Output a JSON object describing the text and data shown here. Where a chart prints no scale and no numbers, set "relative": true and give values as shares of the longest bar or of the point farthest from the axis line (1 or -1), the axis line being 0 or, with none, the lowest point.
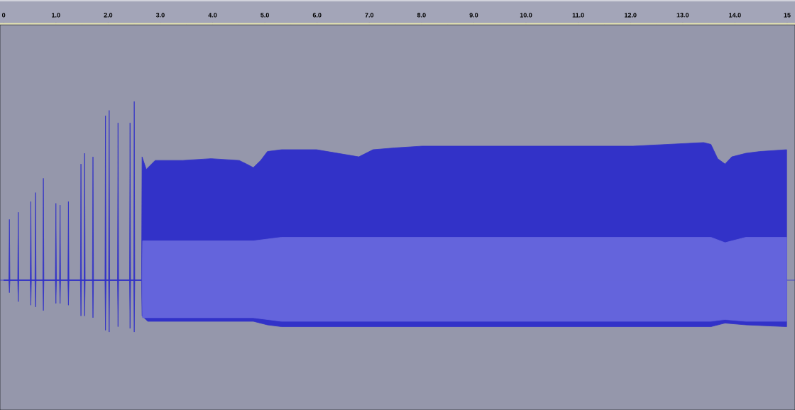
{
  "chart_data": {
    "type": "area",
    "relative": true,
    "xlim": [
      -0.07,
      15.15
    ],
    "ref_lines": [
      {
        "axis": "y",
        "value": 0,
        "color": "#3232c8"
      }
    ],
    "xticks": [
      0,
      {
        "value": 1,
        "label": "1.0"
      },
      {
        "value": 2,
        "label": "2.0"
      },
      {
        "value": 3,
        "label": "3.0"
      },
      {
        "value": 4,
        "label": "4.0"
      },
      {
        "value": 5,
        "label": "5.0"
      },
      {
        "value": 6,
        "label": "6.0"
      },
      {
        "value": 7,
        "label": "7.0"
      },
      {
        "value": 8,
        "label": "8.0"
      },
      {
        "value": 9,
        "label": "9.0"
      },
      {
        "value": 10,
        "label": "10.0"
      },
      {
        "value": 11,
        "label": "11.0"
      },
      {
        "value": 12,
        "label": "12.0"
      },
      {
        "value": 13,
        "label": "13.0"
      },
      {
        "value": 14,
        "label": "14.0"
      },
      15
    ],
    "series": [
      {
        "color": "#3232c8",
        "x": [
          0,
          0.1,
          0.11,
          0.12,
          0.27,
          0.28,
          0.29,
          0.51,
          0.52,
          0.53,
          0.6,
          0.61,
          0.62,
          0.75,
          0.76,
          0.77,
          0.99,
          1.0,
          1.01,
          1.07,
          1.08,
          1.09,
          1.23,
          1.24,
          1.25,
          1.47,
          1.48,
          1.49,
          1.54,
          1.55,
          1.56,
          1.7,
          1.71,
          1.72,
          1.94,
          1.95,
          1.96,
          2.01,
          2.02,
          2.03,
          2.18,
          2.19,
          2.2,
          2.41,
          2.42,
          2.43,
          2.49,
          2.5,
          2.51,
          2.64,
          2.65,
          2.73,
          2.9,
          3.43,
          3.97,
          4.51,
          4.65,
          4.78,
          4.92,
          5.05,
          5.32,
          5.99,
          6.8,
          7.07,
          7.48,
          8.01,
          8.82,
          9.36,
          10.71,
          12.05,
          13.4,
          13.54,
          13.67,
          13.81,
          13.94,
          14.21,
          14.48,
          14.99
        ],
        "values": [
          0,
          0,
          0.34,
          0,
          0,
          0.38,
          0,
          0,
          0.44,
          0,
          0,
          0.49,
          0,
          0,
          0.57,
          0,
          0,
          0.43,
          0,
          0,
          0.42,
          0,
          0,
          0.44,
          0,
          0,
          0.65,
          0,
          0,
          0.71,
          0,
          0,
          0.69,
          0,
          0,
          0.92,
          0,
          0,
          0.95,
          0,
          0,
          0.88,
          0,
          0,
          0.88,
          0,
          0,
          1.0,
          0,
          0,
          0.69,
          0.62,
          0.67,
          0.67,
          0.68,
          0.67,
          0.65,
          0.63,
          0.67,
          0.72,
          0.73,
          0.73,
          0.69,
          0.73,
          0.74,
          0.75,
          0.75,
          0.75,
          0.75,
          0.75,
          0.77,
          0.76,
          0.68,
          0.65,
          0.69,
          0.71,
          0.72,
          0.73
        ]
      },
      {
        "color": "#3232c8",
        "x": [
          0,
          0.1,
          0.11,
          0.12,
          0.27,
          0.28,
          0.29,
          0.51,
          0.52,
          0.53,
          0.6,
          0.61,
          0.62,
          0.75,
          0.76,
          0.77,
          0.99,
          1.0,
          1.01,
          1.07,
          1.08,
          1.09,
          1.23,
          1.24,
          1.25,
          1.47,
          1.48,
          1.49,
          1.54,
          1.55,
          1.56,
          1.7,
          1.71,
          1.72,
          1.94,
          1.95,
          1.96,
          2.01,
          2.02,
          2.03,
          2.18,
          2.19,
          2.2,
          2.41,
          2.42,
          2.43,
          2.49,
          2.5,
          2.51,
          2.64,
          2.65,
          2.76,
          4.78,
          5.05,
          5.32,
          8.01,
          13.54,
          13.81,
          14.21,
          14.99
        ],
        "values": [
          0,
          0,
          -0.07,
          0,
          0,
          -0.12,
          0,
          0,
          -0.14,
          0,
          0,
          -0.15,
          0,
          0,
          -0.17,
          0,
          0,
          -0.13,
          0,
          0,
          -0.13,
          0,
          0,
          -0.14,
          0,
          0,
          -0.2,
          0,
          0,
          -0.2,
          0,
          0,
          -0.21,
          0,
          0,
          -0.28,
          0,
          0,
          -0.29,
          0,
          0,
          -0.26,
          0,
          0,
          -0.27,
          0,
          0,
          -0.29,
          0,
          0,
          -0.2,
          -0.23,
          -0.23,
          -0.25,
          -0.26,
          -0.26,
          -0.26,
          -0.24,
          -0.25,
          -0.26
        ]
      },
      {
        "color": "#6464dc",
        "x": [
          2.65,
          2.66,
          4.78,
          5.32,
          13.54,
          13.81,
          14.21,
          14.99
        ],
        "values": [
          0,
          0.22,
          0.22,
          0.24,
          0.24,
          0.21,
          0.24,
          0.24
        ]
      },
      {
        "color": "#6464dc",
        "x": [
          2.65,
          2.66,
          4.78,
          5.32,
          13.54,
          13.81,
          14.21,
          14.99
        ],
        "values": [
          0,
          -0.21,
          -0.21,
          -0.23,
          -0.23,
          -0.22,
          -0.23,
          -0.23
        ]
      }
    ]
  }
}
